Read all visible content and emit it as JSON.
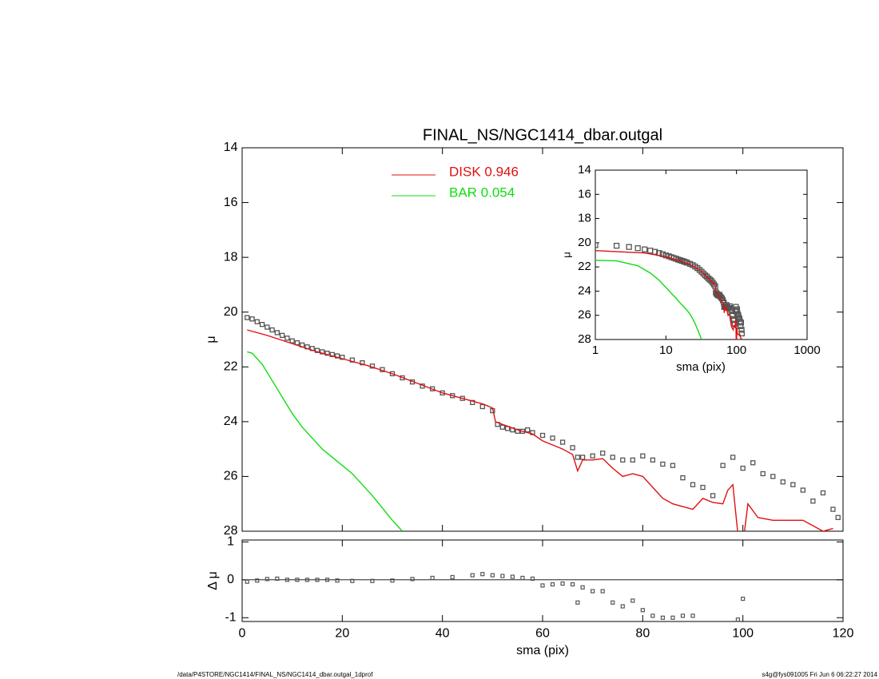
{
  "chart_data": [
    {
      "type": "line",
      "title": "FINAL_NS/NGC1414_dbar.outgal",
      "ylabel": "μ",
      "xlim": [
        0,
        120
      ],
      "xticks": [
        0,
        20,
        40,
        60,
        80,
        100,
        120
      ],
      "ylim": [
        28,
        14
      ],
      "yticks": [
        14,
        16,
        18,
        20,
        22,
        24,
        26,
        28
      ],
      "series": [
        {
          "color": "#555555",
          "marker": "square",
          "x": [
            1,
            2,
            3,
            4,
            5,
            6,
            7,
            8,
            9,
            10,
            11,
            12,
            13,
            14,
            15,
            16,
            17,
            18,
            19,
            20,
            22,
            24,
            26,
            28,
            30,
            32,
            34,
            36,
            38,
            40,
            42,
            44,
            46,
            48,
            50,
            51,
            52,
            53,
            54,
            55,
            56,
            57,
            58,
            60,
            62,
            64,
            66,
            67,
            68,
            70,
            72,
            74,
            76,
            78,
            80,
            82,
            84,
            86,
            88,
            90,
            92,
            94,
            96,
            98,
            100,
            102,
            104,
            106,
            108,
            110,
            112,
            114,
            116,
            118,
            119
          ],
          "values": [
            20.2,
            20.25,
            20.35,
            20.45,
            20.55,
            20.65,
            20.75,
            20.85,
            20.95,
            21.05,
            21.12,
            21.2,
            21.27,
            21.33,
            21.4,
            21.45,
            21.5,
            21.55,
            21.6,
            21.65,
            21.75,
            21.85,
            21.97,
            22.1,
            22.25,
            22.4,
            22.55,
            22.7,
            22.8,
            22.95,
            23.05,
            23.15,
            23.3,
            23.45,
            23.6,
            24.1,
            24.2,
            24.25,
            24.3,
            24.35,
            24.35,
            24.3,
            24.4,
            24.5,
            24.6,
            24.75,
            24.95,
            25.3,
            25.3,
            25.25,
            25.15,
            25.3,
            25.4,
            25.4,
            25.25,
            25.4,
            25.55,
            25.6,
            26.05,
            26.3,
            26.4,
            26.7,
            25.6,
            25.3,
            25.7,
            25.5,
            25.9,
            26.0,
            26.2,
            26.3,
            26.5,
            26.9,
            26.6,
            27.2,
            27.5
          ]
        },
        {
          "name": "DISK  0.946",
          "color": "#e01010",
          "x": [
            1,
            5,
            10,
            15,
            20,
            25,
            30,
            35,
            40,
            45,
            48,
            50,
            50.6,
            52,
            55,
            58,
            60,
            62,
            64,
            65,
            66,
            67,
            68,
            70,
            72,
            74,
            76,
            78,
            80,
            82,
            84,
            86,
            88,
            90,
            92,
            94,
            96,
            97,
            98,
            99,
            99.5,
            100,
            101,
            103,
            106,
            108,
            110,
            112,
            114,
            116,
            118
          ],
          "values": [
            20.65,
            20.85,
            21.15,
            21.45,
            21.7,
            21.95,
            22.25,
            22.6,
            22.95,
            23.2,
            23.35,
            23.5,
            24.0,
            24.1,
            24.3,
            24.45,
            24.7,
            24.85,
            25.0,
            25.1,
            25.2,
            25.8,
            25.4,
            25.4,
            25.35,
            25.7,
            26.0,
            25.9,
            26.0,
            26.4,
            26.8,
            27.0,
            27.1,
            27.2,
            26.8,
            26.95,
            27.0,
            26.5,
            26.3,
            28.1,
            28.5,
            28.5,
            27.0,
            27.5,
            27.6,
            27.6,
            27.6,
            27.6,
            27.8,
            28.0,
            27.9
          ]
        },
        {
          "name": "BAR  0.054",
          "color": "#10dd10",
          "x": [
            1,
            2,
            4,
            6,
            8,
            10,
            12,
            14,
            16,
            18,
            20,
            22,
            24,
            26,
            28,
            30,
            32
          ],
          "values": [
            21.45,
            21.5,
            21.9,
            22.5,
            23.1,
            23.7,
            24.2,
            24.6,
            25.0,
            25.3,
            25.6,
            25.9,
            26.3,
            26.7,
            27.15,
            27.6,
            28.0
          ]
        }
      ]
    },
    {
      "type": "inset",
      "xlabel": "sma (pix)",
      "ylabel": "μ",
      "xscale": "log",
      "xlim": [
        1,
        1000
      ],
      "xticks": [
        1,
        10,
        100,
        1000
      ],
      "ylim": [
        28,
        14
      ],
      "yticks": [
        14,
        16,
        18,
        20,
        22,
        24,
        26,
        28
      ]
    },
    {
      "type": "scatter",
      "xlabel": "sma (pix)",
      "ylabel": "Δ μ",
      "xlim": [
        0,
        120
      ],
      "xticks": [
        0,
        20,
        40,
        60,
        80,
        100,
        120
      ],
      "ylim": [
        -1.1,
        1.05
      ],
      "yticks": [
        -1,
        0,
        1
      ],
      "color": "#555555",
      "x": [
        1,
        3,
        5,
        7,
        9,
        11,
        13,
        15,
        17,
        19,
        22,
        26,
        30,
        34,
        38,
        42,
        46,
        48,
        50,
        52,
        54,
        56,
        58,
        60,
        62,
        64,
        66,
        67,
        68,
        70,
        72,
        74,
        76,
        78,
        80,
        82,
        84,
        86,
        88,
        90,
        99,
        100
      ],
      "values": [
        -0.05,
        -0.02,
        0.02,
        0.03,
        0,
        0,
        0,
        0,
        0,
        -0.02,
        -0.03,
        -0.03,
        -0.02,
        0.02,
        0.05,
        0.07,
        0.12,
        0.15,
        0.12,
        0.1,
        0.08,
        0.05,
        0.03,
        -0.15,
        -0.12,
        -0.1,
        -0.12,
        -0.6,
        -0.2,
        -0.3,
        -0.3,
        -0.6,
        -0.7,
        -0.55,
        -0.8,
        -0.95,
        -1.0,
        -1.0,
        -0.95,
        -0.95,
        -1.05,
        -0.5
      ]
    }
  ],
  "footer": {
    "left": "/data/P4STORE/NGC1414/FINAL_NS/NGC1414_dbar.outgal_1dprof",
    "right": "s4g@fys091005  Fri Jun  6 06:22:27 2014"
  }
}
